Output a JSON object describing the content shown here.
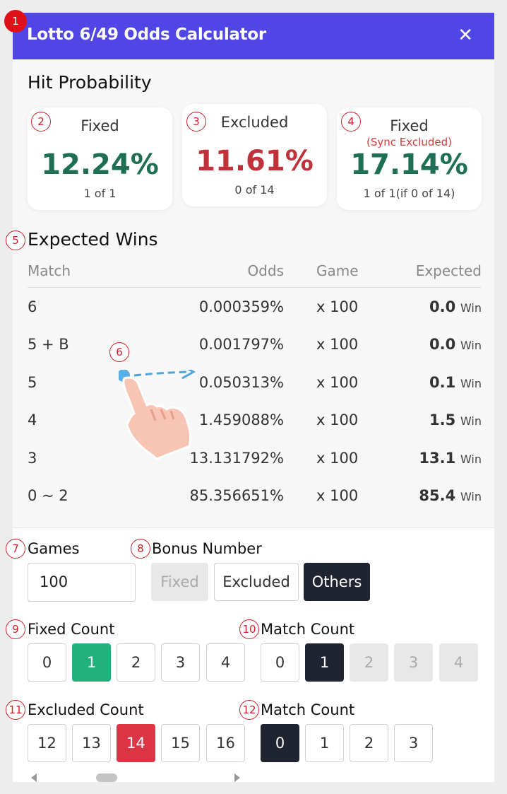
{
  "header": {
    "title": "Lotto 6/49 Odds Calculator",
    "close_label": "✕"
  },
  "hit_probability": {
    "title": "Hit Probability",
    "cards": [
      {
        "label": "Fixed",
        "sub": "",
        "value": "12.24%",
        "count": "1 of 1",
        "color": "#1f6f57"
      },
      {
        "label": "Excluded",
        "sub": "",
        "value": "11.61%",
        "count": "0 of 14",
        "color": "#c0313a"
      },
      {
        "label": "Fixed",
        "sub": "(Sync Excluded)",
        "value": "17.14%",
        "count": "1 of 1(if 0 of 14)",
        "color": "#1f6f57"
      }
    ]
  },
  "expected_wins": {
    "title": "Expected Wins",
    "columns": [
      "Match",
      "Odds",
      "Game",
      "Expected"
    ],
    "rows": [
      {
        "match": "6",
        "odds": "0.000359%",
        "game": "x 100",
        "expected": "0.0",
        "unit": "Win"
      },
      {
        "match": "5 + B",
        "odds": "0.001797%",
        "game": "x 100",
        "expected": "0.0",
        "unit": "Win"
      },
      {
        "match": "5",
        "odds": "0.050313%",
        "game": "x 100",
        "expected": "0.1",
        "unit": "Win"
      },
      {
        "match": "4",
        "odds": "1.459088%",
        "game": "x 100",
        "expected": "1.5",
        "unit": "Win"
      },
      {
        "match": "3",
        "odds": "13.131792%",
        "game": "x 100",
        "expected": "13.1",
        "unit": "Win"
      },
      {
        "match": "0 ~ 2",
        "odds": "85.356651%",
        "game": "x 100",
        "expected": "85.4",
        "unit": "Win"
      }
    ]
  },
  "games": {
    "label": "Games",
    "value": "100"
  },
  "bonus_number": {
    "label": "Bonus Number",
    "options": [
      "Fixed",
      "Excluded",
      "Others"
    ],
    "selected": "Others"
  },
  "fixed_count": {
    "label": "Fixed Count",
    "options": [
      "0",
      "1",
      "2",
      "3",
      "4"
    ],
    "selected": "1"
  },
  "fixed_match_count": {
    "label": "Match Count",
    "options": [
      "0",
      "1",
      "2",
      "3",
      "4"
    ],
    "selected": "1"
  },
  "excluded_count": {
    "label": "Excluded Count",
    "options": [
      "12",
      "13",
      "14",
      "15",
      "16"
    ],
    "selected": "14"
  },
  "excluded_match_count": {
    "label": "Match Count",
    "options": [
      "0",
      "1",
      "2",
      "3"
    ],
    "selected": "0"
  },
  "badges": [
    "1",
    "2",
    "3",
    "4",
    "5",
    "6",
    "7",
    "8",
    "9",
    "10",
    "11",
    "12"
  ],
  "colors": {
    "header": "#4f46e5",
    "green": "#22b07d",
    "red": "#dc3545",
    "dark": "#1f2430"
  }
}
